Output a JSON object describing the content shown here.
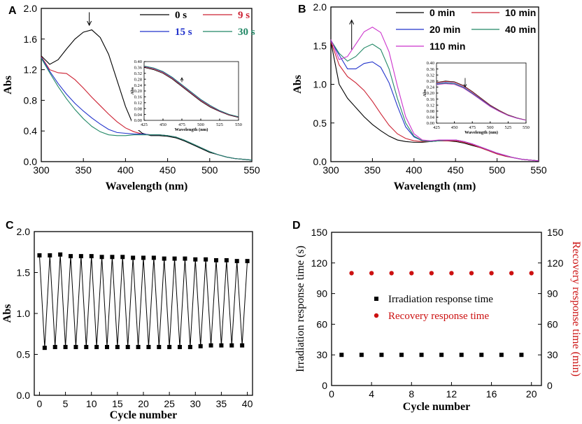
{
  "chart_data": [
    {
      "id": "A",
      "type": "line",
      "panel_label": "A",
      "xlabel": "Wavelength (nm)",
      "ylabel": "Abs",
      "xlim": [
        300,
        550
      ],
      "ylim": [
        0.0,
        2.0
      ],
      "x_ticks": [
        "300",
        "350",
        "400",
        "450",
        "500",
        "550"
      ],
      "y_ticks": [
        "0.0",
        "0.4",
        "0.8",
        "1.2",
        "1.6",
        "2.0"
      ],
      "x": [
        300,
        310,
        320,
        330,
        340,
        350,
        360,
        370,
        380,
        390,
        400,
        410,
        420,
        430,
        440,
        450,
        460,
        470,
        480,
        490,
        500,
        510,
        520,
        530,
        540,
        550
      ],
      "series": [
        {
          "name": "0 s",
          "color": "#000000",
          "values": [
            1.38,
            1.27,
            1.33,
            1.47,
            1.6,
            1.69,
            1.72,
            1.62,
            1.4,
            1.06,
            0.72,
            0.46,
            0.37,
            0.34,
            0.34,
            0.33,
            0.31,
            0.27,
            0.22,
            0.17,
            0.12,
            0.09,
            0.06,
            0.04,
            0.03,
            0.02
          ]
        },
        {
          "name": "9 s",
          "color": "#cc2233",
          "values": [
            1.37,
            1.2,
            1.16,
            1.15,
            1.07,
            0.96,
            0.84,
            0.73,
            0.62,
            0.52,
            0.44,
            0.39,
            0.36,
            0.35,
            0.35,
            0.34,
            0.32,
            0.28,
            0.23,
            0.18,
            0.13,
            0.09,
            0.06,
            0.04,
            0.03,
            0.02
          ]
        },
        {
          "name": "15 s",
          "color": "#2233cc",
          "values": [
            1.36,
            1.18,
            1.02,
            0.88,
            0.76,
            0.66,
            0.57,
            0.49,
            0.42,
            0.38,
            0.37,
            0.36,
            0.36,
            0.35,
            0.35,
            0.34,
            0.32,
            0.28,
            0.23,
            0.18,
            0.13,
            0.09,
            0.06,
            0.04,
            0.03,
            0.02
          ]
        },
        {
          "name": "30 s",
          "color": "#228866",
          "values": [
            1.35,
            1.16,
            0.98,
            0.82,
            0.68,
            0.56,
            0.46,
            0.39,
            0.35,
            0.34,
            0.34,
            0.35,
            0.35,
            0.35,
            0.35,
            0.34,
            0.32,
            0.28,
            0.23,
            0.18,
            0.13,
            0.09,
            0.06,
            0.04,
            0.03,
            0.02
          ]
        }
      ],
      "annotation": "down arrow at 0 s peak",
      "inset": {
        "xlabel": "Wavelength (nm)",
        "ylabel": "Abs",
        "xlim": [
          425,
          550
        ],
        "ylim": [
          0.0,
          0.4
        ],
        "x_ticks": [
          "425",
          "450",
          "475",
          "500",
          "525",
          "550"
        ],
        "y_ticks": [
          "0.00",
          "0.04",
          "0.08",
          "0.12",
          "0.16",
          "0.20",
          "0.24",
          "0.28",
          "0.32",
          "0.36",
          "0.40"
        ],
        "x": [
          425,
          437.5,
          450,
          462.5,
          475,
          487.5,
          500,
          512.5,
          525,
          537.5,
          550
        ],
        "series": [
          {
            "name": "0 s",
            "color": "#000000",
            "values": [
              0.36,
              0.345,
              0.32,
              0.28,
              0.23,
              0.18,
              0.13,
              0.09,
              0.06,
              0.035,
              0.02
            ]
          },
          {
            "name": "9 s",
            "color": "#cc2233",
            "values": [
              0.365,
              0.35,
              0.325,
              0.285,
              0.235,
              0.185,
              0.135,
              0.095,
              0.062,
              0.037,
              0.022
            ]
          },
          {
            "name": "15 s",
            "color": "#2233cc",
            "values": [
              0.368,
              0.355,
              0.33,
              0.29,
              0.24,
              0.19,
              0.14,
              0.1,
              0.065,
              0.04,
              0.024
            ]
          },
          {
            "name": "30 s",
            "color": "#228866",
            "values": [
              0.37,
              0.357,
              0.333,
              0.293,
              0.243,
              0.193,
              0.143,
              0.102,
              0.067,
              0.041,
              0.025
            ]
          }
        ]
      }
    },
    {
      "id": "B",
      "type": "line",
      "panel_label": "B",
      "xlabel": "Wavelength (nm)",
      "ylabel": "Abs",
      "xlim": [
        300,
        550
      ],
      "ylim": [
        0.0,
        2.0
      ],
      "x_ticks": [
        "300",
        "350",
        "400",
        "450",
        "500",
        "550"
      ],
      "y_ticks": [
        "0.0",
        "0.5",
        "1.0",
        "1.5",
        "2.0"
      ],
      "x": [
        300,
        310,
        320,
        330,
        340,
        350,
        360,
        370,
        380,
        390,
        400,
        410,
        420,
        430,
        440,
        450,
        460,
        470,
        480,
        490,
        500,
        510,
        520,
        530,
        540,
        550
      ],
      "series": [
        {
          "name": "0 min",
          "color": "#000000",
          "values": [
            1.55,
            1.0,
            0.82,
            0.7,
            0.58,
            0.48,
            0.4,
            0.33,
            0.28,
            0.26,
            0.25,
            0.25,
            0.26,
            0.27,
            0.27,
            0.26,
            0.24,
            0.21,
            0.18,
            0.14,
            0.1,
            0.07,
            0.05,
            0.03,
            0.02,
            0.01
          ]
        },
        {
          "name": "10 min",
          "color": "#cc2233",
          "values": [
            1.55,
            1.25,
            1.1,
            1.02,
            0.92,
            0.78,
            0.62,
            0.47,
            0.36,
            0.3,
            0.27,
            0.26,
            0.26,
            0.27,
            0.27,
            0.27,
            0.25,
            0.22,
            0.18,
            0.14,
            0.1,
            0.07,
            0.05,
            0.03,
            0.02,
            0.01
          ]
        },
        {
          "name": "20 min",
          "color": "#2233cc",
          "values": [
            1.56,
            1.38,
            1.2,
            1.2,
            1.27,
            1.29,
            1.22,
            1.02,
            0.72,
            0.45,
            0.32,
            0.27,
            0.26,
            0.27,
            0.28,
            0.28,
            0.26,
            0.23,
            0.19,
            0.15,
            0.11,
            0.08,
            0.05,
            0.03,
            0.02,
            0.01
          ]
        },
        {
          "name": "40 min",
          "color": "#228866",
          "values": [
            1.57,
            1.4,
            1.3,
            1.36,
            1.47,
            1.52,
            1.45,
            1.2,
            0.82,
            0.5,
            0.33,
            0.27,
            0.26,
            0.27,
            0.28,
            0.28,
            0.26,
            0.23,
            0.19,
            0.15,
            0.11,
            0.08,
            0.05,
            0.03,
            0.02,
            0.01
          ]
        },
        {
          "name": "110 min",
          "color": "#cc33cc",
          "values": [
            1.58,
            1.32,
            1.36,
            1.52,
            1.68,
            1.74,
            1.67,
            1.42,
            0.98,
            0.58,
            0.36,
            0.28,
            0.27,
            0.28,
            0.28,
            0.28,
            0.26,
            0.23,
            0.19,
            0.15,
            0.11,
            0.08,
            0.05,
            0.03,
            0.02,
            0.01
          ]
        }
      ],
      "annotation": "up arrow showing rising absorbance",
      "inset": {
        "xlabel": "Wavelength (nm)",
        "ylabel": "Abs",
        "xlim": [
          425,
          550
        ],
        "ylim": [
          0.0,
          0.4
        ],
        "x_ticks": [
          "425",
          "450",
          "475",
          "500",
          "525",
          "550"
        ],
        "y_ticks": [
          "0.00",
          "0.04",
          "0.08",
          "0.12",
          "0.16",
          "0.20",
          "0.24",
          "0.28",
          "0.32",
          "0.36",
          "0.40"
        ],
        "x": [
          425,
          437.5,
          450,
          462.5,
          475,
          487.5,
          500,
          512.5,
          525,
          537.5,
          550
        ],
        "series": [
          {
            "name": "0 min",
            "color": "#000000",
            "values": [
              0.27,
              0.28,
              0.275,
              0.25,
              0.21,
              0.165,
              0.12,
              0.085,
              0.055,
              0.035,
              0.02
            ]
          },
          {
            "name": "10 min",
            "color": "#cc2233",
            "values": [
              0.268,
              0.277,
              0.272,
              0.247,
              0.207,
              0.162,
              0.118,
              0.083,
              0.054,
              0.034,
              0.02
            ]
          },
          {
            "name": "20 min",
            "color": "#2233cc",
            "values": [
              0.262,
              0.27,
              0.265,
              0.24,
              0.2,
              0.157,
              0.114,
              0.08,
              0.052,
              0.033,
              0.019
            ]
          },
          {
            "name": "40 min",
            "color": "#228866",
            "values": [
              0.258,
              0.266,
              0.261,
              0.236,
              0.197,
              0.154,
              0.112,
              0.079,
              0.051,
              0.032,
              0.019
            ]
          },
          {
            "name": "110 min",
            "color": "#cc33cc",
            "values": [
              0.255,
              0.262,
              0.257,
              0.233,
              0.194,
              0.152,
              0.11,
              0.078,
              0.05,
              0.032,
              0.019
            ]
          }
        ]
      }
    },
    {
      "id": "C",
      "type": "line",
      "panel_label": "C",
      "xlabel": "Cycle number",
      "ylabel": "Abs",
      "xlim": [
        -1,
        41
      ],
      "ylim": [
        0.0,
        2.0
      ],
      "x_ticks": [
        "0",
        "5",
        "10",
        "15",
        "20",
        "25",
        "30",
        "35",
        "40"
      ],
      "y_ticks": [
        "0.0",
        "0.5",
        "1.0",
        "1.5",
        "2.0"
      ],
      "x": [
        0,
        1,
        2,
        3,
        4,
        5,
        6,
        7,
        8,
        9,
        10,
        11,
        12,
        13,
        14,
        15,
        16,
        17,
        18,
        19,
        20,
        21,
        22,
        23,
        24,
        25,
        26,
        27,
        28,
        29,
        30,
        31,
        32,
        33,
        34,
        35,
        36,
        37,
        38,
        39,
        40
      ],
      "values": [
        1.71,
        0.58,
        1.71,
        0.59,
        1.72,
        0.59,
        1.7,
        0.59,
        1.7,
        0.59,
        1.7,
        0.59,
        1.69,
        0.59,
        1.69,
        0.59,
        1.69,
        0.59,
        1.68,
        0.59,
        1.68,
        0.59,
        1.68,
        0.59,
        1.67,
        0.59,
        1.67,
        0.59,
        1.67,
        0.59,
        1.66,
        0.6,
        1.66,
        0.61,
        1.65,
        0.61,
        1.65,
        0.61,
        1.64,
        0.61,
        1.64
      ],
      "marker": "square",
      "color": "#000000"
    },
    {
      "id": "D",
      "type": "scatter",
      "panel_label": "D",
      "xlabel": "Cycle number",
      "ylabel": "Irradiation response time (s)",
      "ylabel_right": "Recovery response time (min)",
      "xlim": [
        0,
        21
      ],
      "ylim": [
        0,
        150
      ],
      "ylim_right": [
        0,
        150
      ],
      "x_ticks": [
        "0",
        "4",
        "8",
        "12",
        "16",
        "20"
      ],
      "y_ticks": [
        "0",
        "30",
        "60",
        "90",
        "120",
        "150"
      ],
      "y_ticks_right": [
        "0",
        "30",
        "60",
        "90",
        "120",
        "150"
      ],
      "series": [
        {
          "name": "Irradiation response time",
          "color": "#000000",
          "marker": "square",
          "axis": "left",
          "x": [
            1,
            3,
            5,
            7,
            9,
            11,
            13,
            15,
            17,
            19
          ],
          "values": [
            30,
            30,
            30,
            30,
            30,
            30,
            30,
            30,
            30,
            30
          ]
        },
        {
          "name": "Recovery response time",
          "color": "#cc1111",
          "marker": "circle",
          "axis": "right",
          "x": [
            2,
            4,
            6,
            8,
            10,
            12,
            14,
            16,
            18,
            20
          ],
          "values": [
            110,
            110,
            110,
            110,
            110,
            110,
            110,
            110,
            110,
            110
          ]
        }
      ]
    }
  ]
}
